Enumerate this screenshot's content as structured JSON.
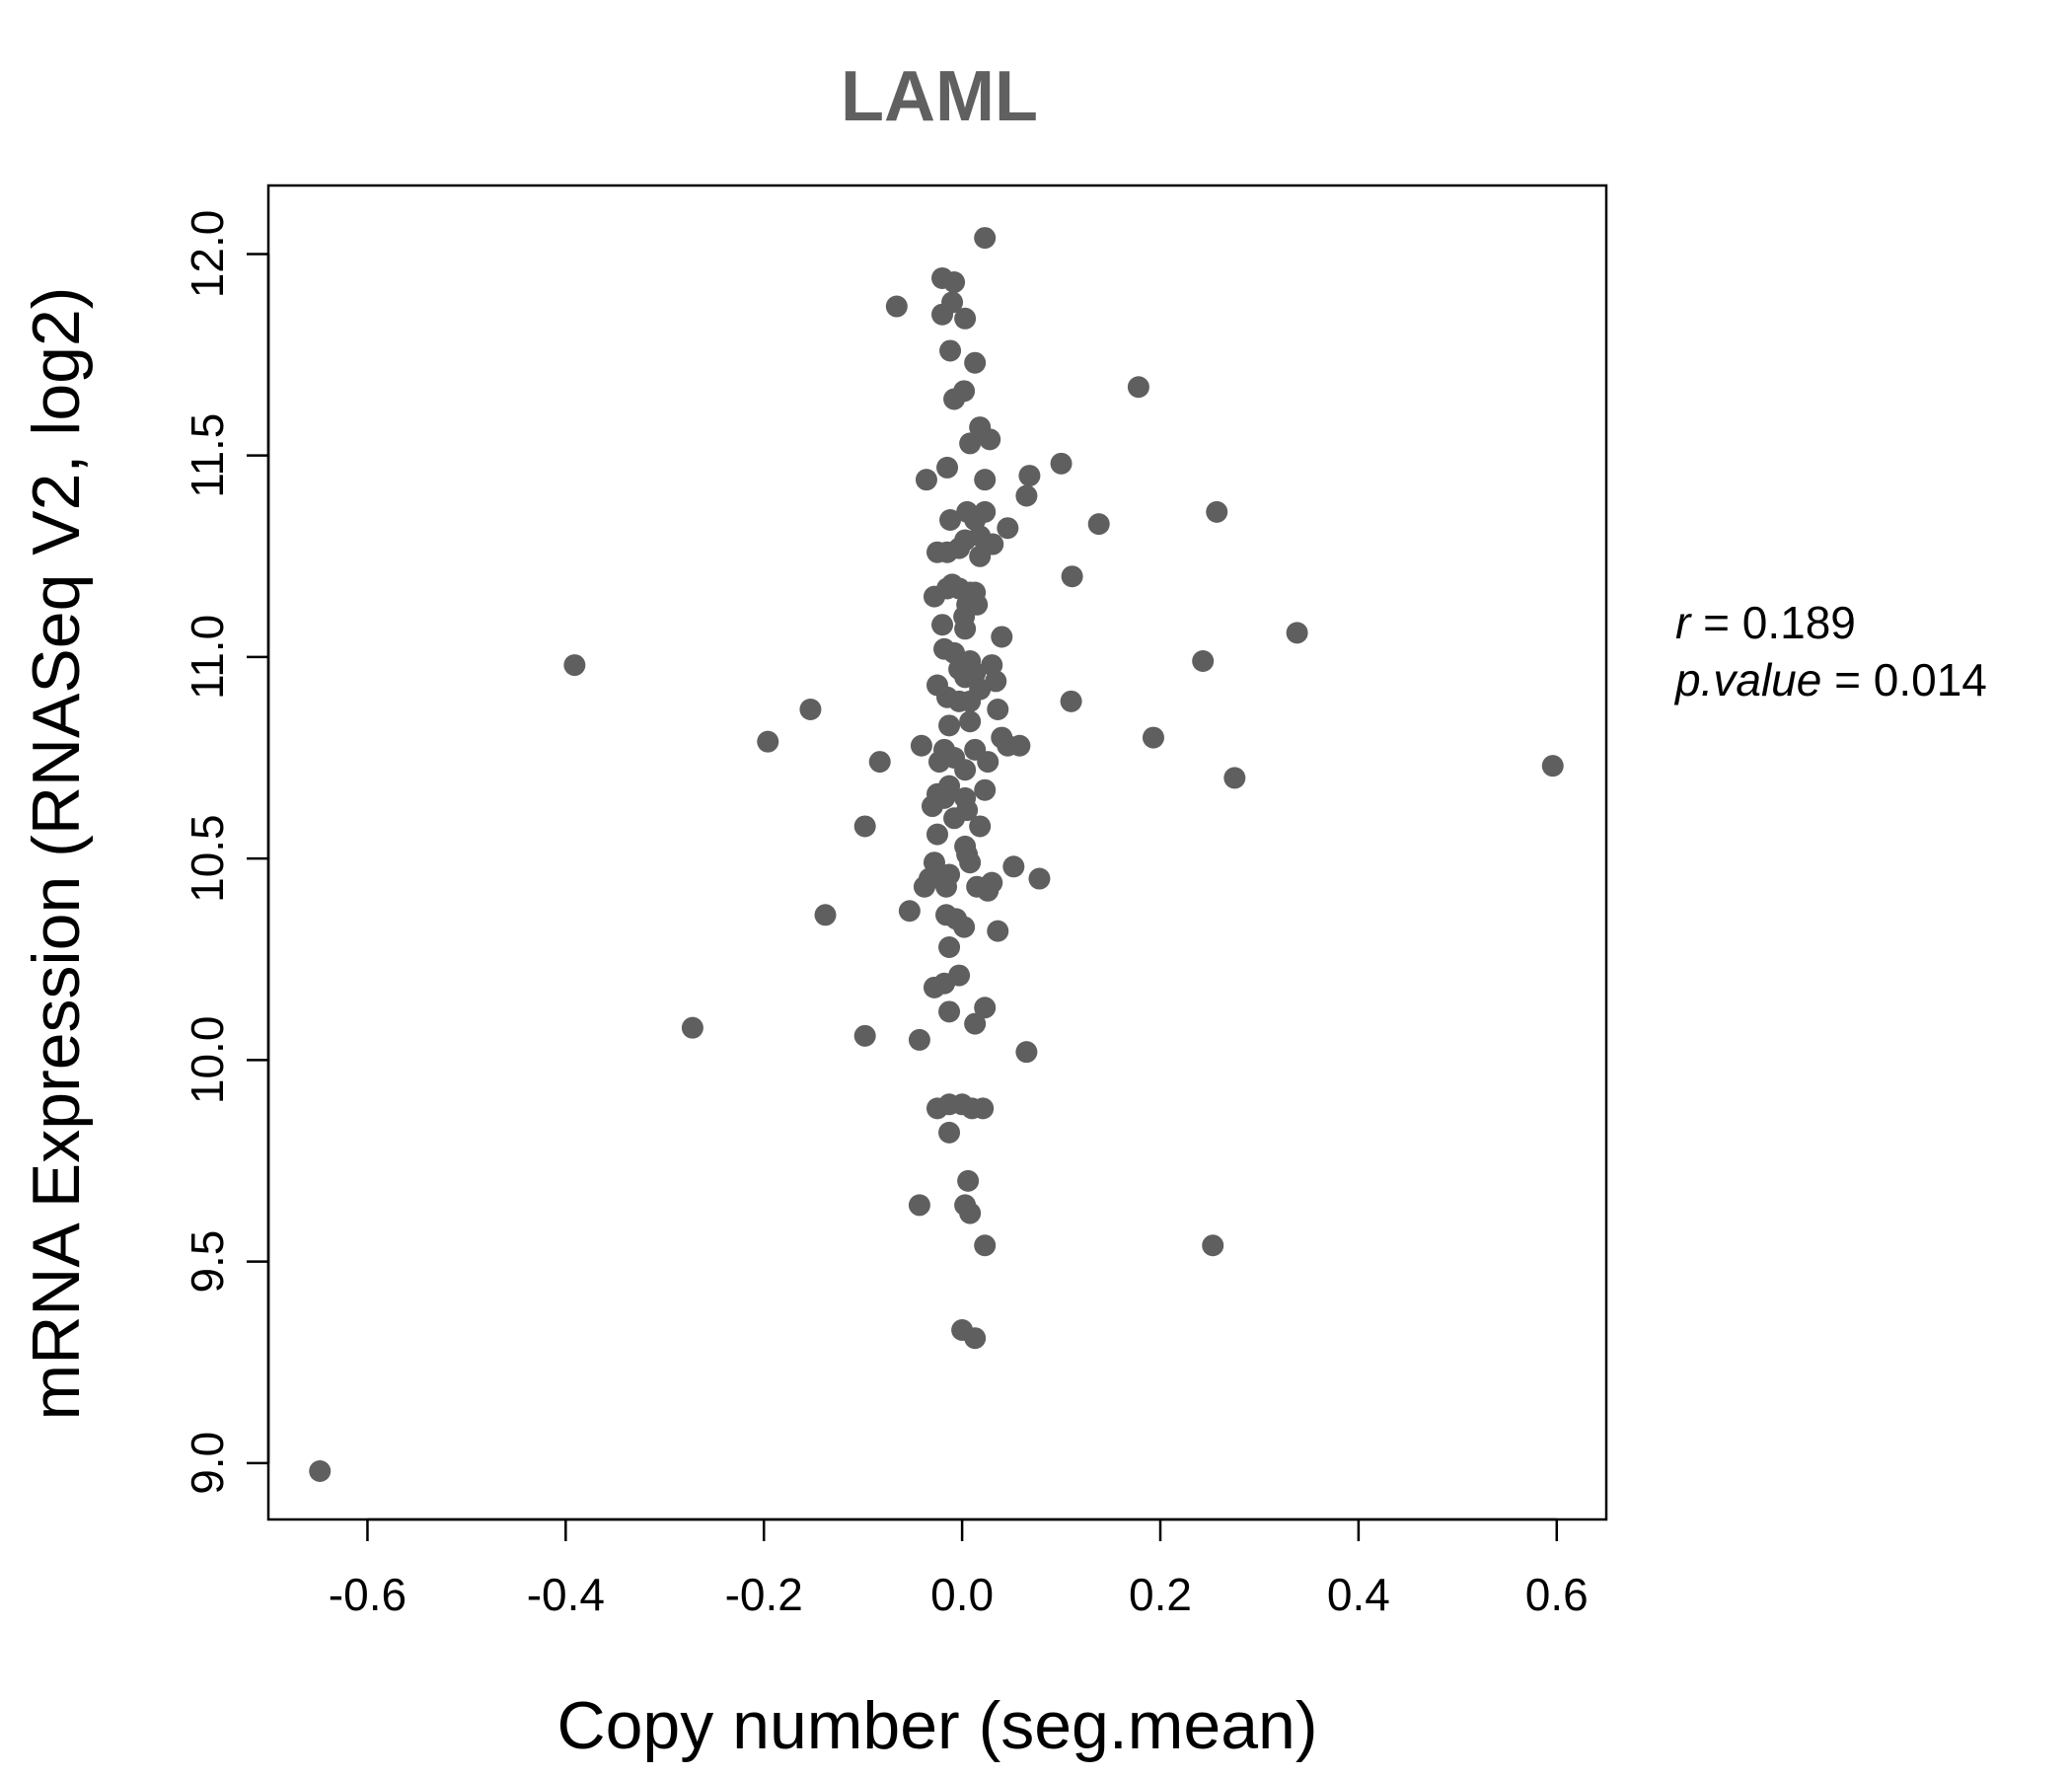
{
  "chart_data": {
    "type": "scatter",
    "title": "LAML",
    "xlabel": "Copy number (seg.mean)",
    "ylabel": "mRNA Expression (RNASeq V2, log2)",
    "xlim": [
      -0.7,
      0.65
    ],
    "ylim": [
      8.86,
      12.17
    ],
    "x_ticks": [
      -0.6,
      -0.4,
      -0.2,
      0.0,
      0.2,
      0.4,
      0.6
    ],
    "x_tick_labels": [
      "-0.6",
      "-0.4",
      "-0.2",
      "0.0",
      "0.2",
      "0.4",
      "0.6"
    ],
    "y_ticks": [
      9.0,
      9.5,
      10.0,
      10.5,
      11.0,
      11.5,
      12.0
    ],
    "y_tick_labels": [
      "9.0",
      "9.5",
      "10.0",
      "10.5",
      "11.0",
      "11.5",
      "12.0"
    ],
    "point_color": "#5f5f5f",
    "grid": false,
    "annotation": {
      "r_label": "r",
      "r_value": "0.189",
      "p_label": "p.value",
      "p_value": "0.014"
    },
    "points": [
      [
        0.023,
        12.04
      ],
      [
        -0.066,
        11.87
      ],
      [
        -0.02,
        11.94
      ],
      [
        -0.008,
        11.93
      ],
      [
        -0.01,
        11.88
      ],
      [
        -0.02,
        11.85
      ],
      [
        0.003,
        11.84
      ],
      [
        -0.012,
        11.76
      ],
      [
        0.013,
        11.73
      ],
      [
        0.178,
        11.67
      ],
      [
        0.002,
        11.66
      ],
      [
        -0.008,
        11.64
      ],
      [
        0.018,
        11.57
      ],
      [
        0.028,
        11.54
      ],
      [
        0.008,
        11.53
      ],
      [
        -0.015,
        11.47
      ],
      [
        0.1,
        11.48
      ],
      [
        -0.036,
        11.44
      ],
      [
        0.023,
        11.44
      ],
      [
        0.068,
        11.45
      ],
      [
        0.065,
        11.4
      ],
      [
        0.005,
        11.36
      ],
      [
        0.023,
        11.36
      ],
      [
        -0.012,
        11.34
      ],
      [
        0.013,
        11.34
      ],
      [
        0.257,
        11.36
      ],
      [
        0.138,
        11.33
      ],
      [
        0.046,
        11.32
      ],
      [
        0.018,
        11.3
      ],
      [
        0.003,
        11.29
      ],
      [
        0.031,
        11.28
      ],
      [
        -0.003,
        11.27
      ],
      [
        -0.025,
        11.26
      ],
      [
        -0.015,
        11.26
      ],
      [
        0.018,
        11.25
      ],
      [
        0.111,
        11.2
      ],
      [
        -0.01,
        11.18
      ],
      [
        -0.015,
        11.17
      ],
      [
        -0.003,
        11.17
      ],
      [
        0.008,
        11.16
      ],
      [
        0.013,
        11.16
      ],
      [
        -0.028,
        11.15
      ],
      [
        0.005,
        11.13
      ],
      [
        0.015,
        11.13
      ],
      [
        0.002,
        11.1
      ],
      [
        -0.02,
        11.08
      ],
      [
        0.003,
        11.07
      ],
      [
        0.338,
        11.06
      ],
      [
        0.04,
        11.05
      ],
      [
        -0.018,
        11.02
      ],
      [
        -0.008,
        11.01
      ],
      [
        0.008,
        10.99
      ],
      [
        0.243,
        10.99
      ],
      [
        0.03,
        10.98
      ],
      [
        -0.003,
        10.97
      ],
      [
        0.013,
        10.96
      ],
      [
        0.003,
        10.95
      ],
      [
        0.034,
        10.94
      ],
      [
        -0.025,
        10.93
      ],
      [
        0.018,
        10.92
      ],
      [
        -0.015,
        10.9
      ],
      [
        0.008,
        10.89
      ],
      [
        -0.003,
        10.89
      ],
      [
        0.11,
        10.89
      ],
      [
        -0.153,
        10.87
      ],
      [
        0.036,
        10.87
      ],
      [
        -0.013,
        10.83
      ],
      [
        0.008,
        10.84
      ],
      [
        0.04,
        10.8
      ],
      [
        -0.196,
        10.79
      ],
      [
        0.193,
        10.8
      ],
      [
        -0.041,
        10.78
      ],
      [
        0.046,
        10.78
      ],
      [
        0.058,
        10.78
      ],
      [
        -0.018,
        10.77
      ],
      [
        0.013,
        10.77
      ],
      [
        -0.008,
        10.75
      ],
      [
        -0.023,
        10.74
      ],
      [
        0.026,
        10.74
      ],
      [
        -0.083,
        10.74
      ],
      [
        0.003,
        10.72
      ],
      [
        0.596,
        10.73
      ],
      [
        0.275,
        10.7
      ],
      [
        -0.013,
        10.68
      ],
      [
        0.023,
        10.67
      ],
      [
        -0.025,
        10.66
      ],
      [
        -0.018,
        10.65
      ],
      [
        0.003,
        10.65
      ],
      [
        -0.03,
        10.63
      ],
      [
        0.005,
        10.62
      ],
      [
        -0.008,
        10.6
      ],
      [
        -0.098,
        10.58
      ],
      [
        0.018,
        10.58
      ],
      [
        -0.025,
        10.56
      ],
      [
        0.003,
        10.53
      ],
      [
        0.005,
        10.51
      ],
      [
        -0.028,
        10.49
      ],
      [
        0.008,
        10.49
      ],
      [
        0.052,
        10.48
      ],
      [
        -0.023,
        10.46
      ],
      [
        -0.013,
        10.46
      ],
      [
        0.078,
        10.45
      ],
      [
        -0.033,
        10.45
      ],
      [
        -0.038,
        10.43
      ],
      [
        0.03,
        10.44
      ],
      [
        -0.016,
        10.43
      ],
      [
        0.015,
        10.43
      ],
      [
        0.026,
        10.42
      ],
      [
        -0.053,
        10.37
      ],
      [
        -0.138,
        10.36
      ],
      [
        -0.016,
        10.36
      ],
      [
        -0.006,
        10.35
      ],
      [
        0.002,
        10.33
      ],
      [
        0.036,
        10.32
      ],
      [
        -0.013,
        10.28
      ],
      [
        -0.003,
        10.21
      ],
      [
        -0.018,
        10.19
      ],
      [
        -0.028,
        10.18
      ],
      [
        0.023,
        10.13
      ],
      [
        -0.013,
        10.12
      ],
      [
        0.013,
        10.09
      ],
      [
        -0.272,
        10.08
      ],
      [
        -0.098,
        10.06
      ],
      [
        -0.043,
        10.05
      ],
      [
        0.065,
        10.02
      ],
      [
        -0.025,
        9.88
      ],
      [
        -0.013,
        9.89
      ],
      [
        0.0,
        9.89
      ],
      [
        0.01,
        9.88
      ],
      [
        0.021,
        9.88
      ],
      [
        -0.013,
        9.82
      ],
      [
        0.006,
        9.7
      ],
      [
        -0.043,
        9.64
      ],
      [
        0.003,
        9.64
      ],
      [
        0.008,
        9.62
      ],
      [
        0.023,
        9.54
      ],
      [
        0.253,
        9.54
      ],
      [
        0.0,
        9.33
      ],
      [
        0.013,
        9.31
      ],
      [
        -0.648,
        8.98
      ],
      [
        -0.391,
        10.98
      ]
    ]
  }
}
